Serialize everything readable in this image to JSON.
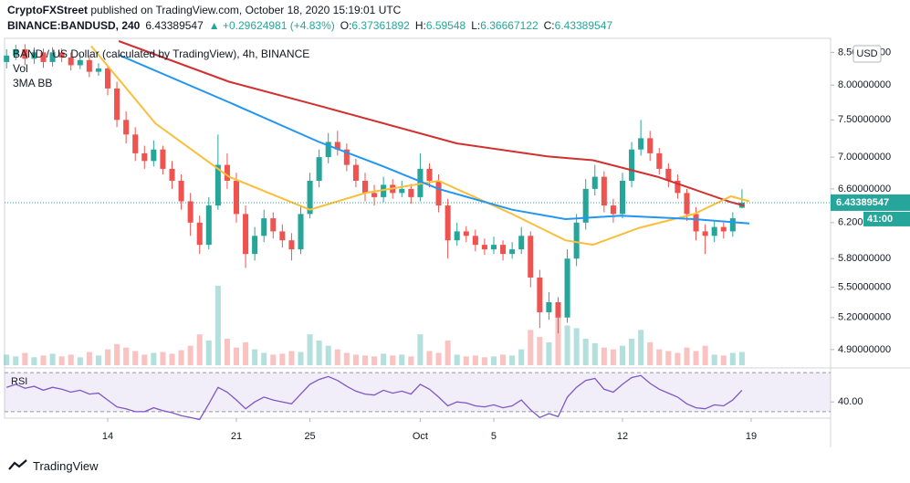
{
  "header": {
    "author": "CryptoFXStreet",
    "published": "published on TradingView.com, October 18, 2020 15:19:01 UTC",
    "symbol": "BINANCE:BANDUSD, 240",
    "change": "▲ +0.29624981 (+4.83%)",
    "ohlc_labels": [
      "O:",
      "H:",
      "L:",
      "C:"
    ]
  },
  "footer": "TradingView",
  "chart_data": {
    "type": "candlestick",
    "legend": [
      "BAND / US Dollar (calculated by TradingView), 4h, BINANCE",
      "Vol",
      "3MA BB"
    ],
    "currency": "USD",
    "countdown": "41:00",
    "up_color": "#26a69a",
    "down_color": "#ef5350",
    "log_scale": true,
    "grid": false,
    "xlim": [
      8.39,
      53.32
    ],
    "xticks": [
      14,
      21,
      25,
      {
        "value": 31,
        "label": "Oct"
      },
      {
        "value": 35,
        "label": "5"
      },
      {
        "value": 42,
        "label": "12"
      },
      {
        "value": 49,
        "label": "19"
      }
    ],
    "ylim": [
      4.76,
      8.68
    ],
    "yticks": [
      {
        "value": 8.5,
        "label": "8.50000000"
      },
      {
        "value": 8.0,
        "label": "8.00000000"
      },
      {
        "value": 7.5,
        "label": "7.50000000"
      },
      {
        "value": 7.0,
        "label": "7.00000000"
      },
      {
        "value": 6.6,
        "label": "6.60000000"
      },
      {
        "value": 6.2,
        "label": "6.20000000"
      },
      {
        "value": 5.8,
        "label": "5.80000000"
      },
      {
        "value": 5.5,
        "label": "5.50000000"
      },
      {
        "value": 5.2,
        "label": "5.20000000"
      },
      {
        "value": 4.9,
        "label": "4.90000000"
      }
    ],
    "candles": {
      "x": [
        8.5,
        9,
        9.5,
        10,
        10.5,
        11,
        11.5,
        12,
        12.5,
        13,
        13.5,
        14,
        14.5,
        15,
        15.5,
        16,
        16.5,
        17,
        17.5,
        18,
        18.5,
        19,
        19.5,
        20,
        20.5,
        21,
        21.5,
        22,
        22.5,
        23,
        23.5,
        24,
        24.5,
        25,
        25.5,
        26,
        26.5,
        27,
        27.5,
        28,
        28.5,
        29,
        29.5,
        30,
        30.5,
        31,
        31.5,
        32,
        32.5,
        33,
        33.5,
        34,
        34.5,
        35,
        35.5,
        36,
        36.5,
        37,
        37.5,
        38,
        38.5,
        39,
        39.5,
        40,
        40.5,
        41,
        41.5,
        42,
        42.5,
        43,
        43.5,
        44,
        44.5,
        45,
        45.5,
        46,
        46.5,
        47,
        47.5,
        48,
        48.5
      ],
      "open": [
        8.35,
        8.45,
        8.55,
        8.4,
        8.5,
        8.35,
        8.5,
        8.42,
        8.3,
        8.38,
        8.2,
        8.25,
        7.95,
        7.5,
        7.3,
        7.05,
        6.95,
        7.1,
        6.85,
        6.7,
        6.45,
        6.2,
        5.95,
        6.4,
        6.9,
        6.7,
        6.3,
        5.85,
        6.05,
        6.25,
        6.1,
        6.0,
        5.9,
        6.3,
        6.7,
        7.0,
        7.2,
        7.1,
        6.9,
        6.7,
        6.55,
        6.5,
        6.65,
        6.55,
        6.6,
        6.5,
        6.85,
        6.7,
        6.4,
        6.0,
        6.1,
        6.05,
        5.95,
        5.9,
        5.95,
        5.85,
        5.9,
        6.05,
        5.6,
        5.25,
        5.35,
        5.2,
        5.8,
        6.2,
        6.6,
        6.75,
        6.4,
        6.3,
        6.7,
        7.1,
        7.25,
        7.05,
        6.85,
        6.7,
        6.55,
        6.3,
        6.1,
        6.05,
        6.15,
        6.1,
        6.37361892
      ],
      "high": [
        8.55,
        8.62,
        8.63,
        8.58,
        8.56,
        8.58,
        8.56,
        8.5,
        8.46,
        8.44,
        8.33,
        8.3,
        8.05,
        7.62,
        7.4,
        7.15,
        7.22,
        7.15,
        6.95,
        6.78,
        6.55,
        6.28,
        6.5,
        7.3,
        7.05,
        6.8,
        6.4,
        6.15,
        6.35,
        6.32,
        6.18,
        6.08,
        6.4,
        6.8,
        7.1,
        7.32,
        7.35,
        7.18,
        6.98,
        6.8,
        6.65,
        6.75,
        6.72,
        6.7,
        6.66,
        7.05,
        6.92,
        6.78,
        6.48,
        6.2,
        6.16,
        6.12,
        6.02,
        6.04,
        6.0,
        5.98,
        6.15,
        6.1,
        5.68,
        5.45,
        5.4,
        5.9,
        6.3,
        6.72,
        6.9,
        6.82,
        6.48,
        6.8,
        7.2,
        7.5,
        7.35,
        7.12,
        6.92,
        6.78,
        6.6,
        6.38,
        6.18,
        6.22,
        6.2,
        6.32,
        6.59548
      ],
      "low": [
        8.25,
        8.38,
        8.3,
        8.32,
        8.26,
        8.28,
        8.35,
        8.22,
        8.24,
        8.12,
        8.14,
        7.85,
        7.4,
        7.18,
        6.95,
        6.85,
        6.88,
        6.78,
        6.6,
        6.35,
        6.05,
        5.85,
        5.9,
        6.35,
        6.6,
        6.2,
        5.7,
        5.78,
        5.98,
        6.02,
        5.92,
        5.78,
        5.85,
        6.25,
        6.62,
        6.92,
        7.02,
        6.82,
        6.62,
        6.45,
        6.4,
        6.44,
        6.48,
        6.5,
        6.42,
        6.45,
        6.62,
        6.32,
        5.8,
        5.94,
        5.98,
        5.88,
        5.84,
        5.85,
        5.78,
        5.8,
        5.85,
        5.5,
        5.1,
        5.18,
        5.05,
        5.15,
        5.72,
        6.12,
        6.52,
        6.32,
        6.2,
        6.25,
        6.62,
        7.02,
        6.95,
        6.78,
        6.62,
        6.48,
        6.22,
        6.0,
        5.85,
        5.98,
        6.02,
        6.04,
        6.36667122
      ],
      "close": [
        8.45,
        8.55,
        8.4,
        8.5,
        8.35,
        8.5,
        8.42,
        8.3,
        8.38,
        8.2,
        8.25,
        7.95,
        7.5,
        7.3,
        7.05,
        6.95,
        7.1,
        6.85,
        6.7,
        6.45,
        6.2,
        5.95,
        6.4,
        6.9,
        6.7,
        6.3,
        5.85,
        6.05,
        6.25,
        6.1,
        6.0,
        5.9,
        6.3,
        6.7,
        7.0,
        7.2,
        7.1,
        6.9,
        6.7,
        6.55,
        6.5,
        6.65,
        6.55,
        6.6,
        6.5,
        6.85,
        6.7,
        6.4,
        6.0,
        6.1,
        6.05,
        5.95,
        5.9,
        5.95,
        5.85,
        5.9,
        6.05,
        5.6,
        5.25,
        5.35,
        5.2,
        5.8,
        6.2,
        6.6,
        6.75,
        6.4,
        6.3,
        6.7,
        7.1,
        7.25,
        7.05,
        6.85,
        6.7,
        6.55,
        6.3,
        6.1,
        6.05,
        6.15,
        6.1,
        6.25,
        6.43389547
      ],
      "volume": [
        12,
        10,
        14,
        9,
        11,
        13,
        10,
        12,
        9,
        15,
        11,
        18,
        24,
        20,
        16,
        12,
        14,
        15,
        13,
        17,
        22,
        35,
        28,
        90,
        30,
        20,
        26,
        18,
        14,
        12,
        13,
        16,
        15,
        35,
        28,
        22,
        18,
        14,
        12,
        11,
        10,
        13,
        11,
        12,
        10,
        35,
        16,
        14,
        28,
        12,
        10,
        11,
        9,
        10,
        12,
        11,
        18,
        40,
        32,
        26,
        55,
        45,
        42,
        30,
        25,
        20,
        18,
        22,
        30,
        40,
        26,
        18,
        16,
        14,
        20,
        16,
        22,
        12,
        11,
        14,
        15
      ]
    },
    "moving_averages": [
      {
        "color": "#d32f2f",
        "x": [
          14.6,
          20.6,
          25.5,
          33,
          37.9,
          40.4,
          43.9,
          47.9,
          48.6
        ],
        "values": [
          8.68,
          8.05,
          7.7,
          7.18,
          7.01,
          6.96,
          6.75,
          6.44,
          6.4
        ]
      },
      {
        "color": "#f9bf3b",
        "x": [
          13.1,
          16.6,
          20.6,
          25.0,
          28.0,
          32.0,
          36.0,
          38.9,
          40.4,
          42.9,
          45.9,
          47.9,
          48.9
        ],
        "values": [
          8.6,
          7.45,
          6.75,
          6.35,
          6.55,
          6.7,
          6.3,
          6.0,
          5.95,
          6.14,
          6.3,
          6.51,
          6.45
        ]
      },
      {
        "color": "#2196f3",
        "x": [
          14.6,
          20.6,
          25.5,
          29.0,
          32.0,
          36.0,
          38.9,
          41.9,
          45.9,
          48.9
        ],
        "values": [
          8.46,
          7.75,
          7.2,
          6.88,
          6.6,
          6.35,
          6.24,
          6.28,
          6.24,
          6.19
        ]
      }
    ],
    "rsi": {
      "label": "RSI",
      "color": "#7e57c2",
      "ylim": [
        24.3,
        72.9
      ],
      "yticks": [
        {
          "value": 40,
          "label": "40.00"
        }
      ],
      "bands": [
        70,
        30
      ],
      "values": [
        55,
        58,
        54,
        56,
        52,
        55,
        53,
        50,
        52,
        48,
        49,
        42,
        35,
        33,
        30,
        30,
        34,
        31,
        29,
        26,
        24,
        22,
        38,
        55,
        50,
        42,
        33,
        40,
        45,
        42,
        40,
        38,
        48,
        58,
        63,
        66,
        62,
        56,
        51,
        48,
        47,
        52,
        49,
        51,
        48,
        58,
        53,
        45,
        36,
        40,
        39,
        36,
        35,
        37,
        34,
        36,
        42,
        32,
        24,
        28,
        25,
        45,
        55,
        62,
        64,
        53,
        50,
        58,
        65,
        67,
        59,
        53,
        49,
        45,
        38,
        34,
        33,
        37,
        36,
        42,
        52
      ]
    }
  }
}
